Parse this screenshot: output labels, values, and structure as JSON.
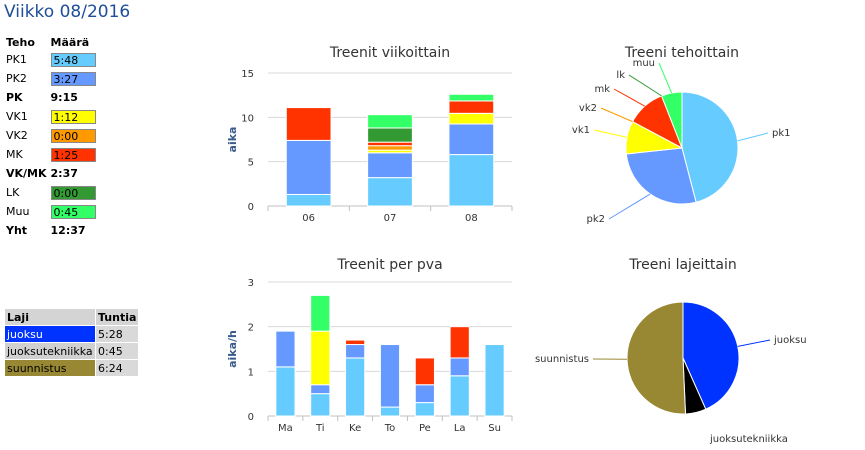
{
  "page_title": "Viikko 08/2016",
  "colors": {
    "PK1": "#66ccff",
    "PK2": "#6699ff",
    "VK1": "#ffff00",
    "VK2": "#ff9900",
    "MK": "#ff3300",
    "LK": "#339933",
    "Muu": "#33ff66",
    "juoksu": "#0033ff",
    "juoksutekniikka": "#000000",
    "suunnistus": "#998833"
  },
  "teho_table": {
    "headers": [
      "Teho",
      "Määrä"
    ],
    "rows": [
      {
        "label": "PK1",
        "value": "5:48",
        "color": "#66ccff",
        "kind": "item"
      },
      {
        "label": "PK2",
        "value": "3:27",
        "color": "#6699ff",
        "kind": "item"
      },
      {
        "label": "PK",
        "value": "9:15",
        "kind": "sum"
      },
      {
        "label": "VK1",
        "value": "1:12",
        "color": "#ffff00",
        "kind": "item"
      },
      {
        "label": "VK2",
        "value": "0:00",
        "color": "#ff9900",
        "kind": "item"
      },
      {
        "label": "MK",
        "value": "1:25",
        "color": "#ff3300",
        "kind": "item"
      },
      {
        "label": "VK/MK",
        "value": "2:37",
        "kind": "sum"
      },
      {
        "label": "LK",
        "value": "0:00",
        "color": "#339933",
        "kind": "item"
      },
      {
        "label": "Muu",
        "value": "0:45",
        "color": "#33ff66",
        "kind": "item"
      },
      {
        "label": "Yht",
        "value": "12:37",
        "kind": "sum"
      }
    ]
  },
  "laji_table": {
    "headers": [
      "Laji",
      "Tuntia"
    ],
    "rows": [
      {
        "name": "juoksu",
        "hours": "5:28",
        "color": "#0033ff"
      },
      {
        "name": "juoksutekniikka",
        "hours": "0:45",
        "color": "#d0d0d0"
      },
      {
        "name": "suunnistus",
        "hours": "6:24",
        "color": "#998833"
      }
    ]
  },
  "chart_data": [
    {
      "type": "bar",
      "stacked": true,
      "title": "Treenit viikoittain",
      "ylabel": "aika",
      "categories": [
        "06",
        "07",
        "08"
      ],
      "ylim": [
        0,
        15
      ],
      "yticks": [
        0,
        5,
        10,
        15
      ],
      "grid": true,
      "series": [
        {
          "key": "PK1",
          "color": "#66ccff",
          "values": [
            1.3,
            3.2,
            5.8
          ]
        },
        {
          "key": "PK2",
          "color": "#6699ff",
          "values": [
            6.1,
            2.8,
            3.45
          ]
        },
        {
          "key": "VK1",
          "color": "#ffff00",
          "values": [
            0,
            0.3,
            1.2
          ]
        },
        {
          "key": "VK2",
          "color": "#ff9900",
          "values": [
            0,
            0.5,
            0
          ]
        },
        {
          "key": "MK",
          "color": "#ff3300",
          "values": [
            3.7,
            0.4,
            1.4
          ]
        },
        {
          "key": "LK",
          "color": "#339933",
          "values": [
            0,
            1.6,
            0
          ]
        },
        {
          "key": "Muu",
          "color": "#33ff66",
          "values": [
            0,
            1.5,
            0.75
          ]
        }
      ]
    },
    {
      "type": "pie",
      "title": "Treeni tehoittain",
      "slices": [
        {
          "label": "pk1",
          "value": 5.8,
          "color": "#66ccff"
        },
        {
          "label": "pk2",
          "value": 3.45,
          "color": "#6699ff"
        },
        {
          "label": "vk1",
          "value": 1.2,
          "color": "#ffff00"
        },
        {
          "label": "vk2",
          "value": 0.0,
          "color": "#ff9900"
        },
        {
          "label": "mk",
          "value": 1.42,
          "color": "#ff3300"
        },
        {
          "label": "lk",
          "value": 0.0,
          "color": "#339933"
        },
        {
          "label": "muu",
          "value": 0.75,
          "color": "#33ff66"
        }
      ]
    },
    {
      "type": "bar",
      "stacked": true,
      "title": "Treenit per pva",
      "ylabel": "aika/h",
      "categories": [
        "Ma",
        "Ti",
        "Ke",
        "To",
        "Pe",
        "La",
        "Su"
      ],
      "ylim": [
        0,
        3
      ],
      "yticks": [
        0,
        1,
        2,
        3
      ],
      "grid": true,
      "series": [
        {
          "key": "PK1",
          "color": "#66ccff",
          "values": [
            1.1,
            0.5,
            1.3,
            0.2,
            0.3,
            0.9,
            1.6
          ]
        },
        {
          "key": "PK2",
          "color": "#6699ff",
          "values": [
            0.8,
            0.2,
            0.3,
            1.4,
            0.4,
            0.4,
            0
          ]
        },
        {
          "key": "VK1",
          "color": "#ffff00",
          "values": [
            0,
            1.2,
            0,
            0,
            0,
            0,
            0
          ]
        },
        {
          "key": "MK",
          "color": "#ff3300",
          "values": [
            0,
            0,
            0.1,
            0,
            0.6,
            0.7,
            0
          ]
        },
        {
          "key": "Muu",
          "color": "#33ff66",
          "values": [
            0,
            0.8,
            0,
            0,
            0,
            0,
            0
          ]
        }
      ]
    },
    {
      "type": "pie",
      "title": "Treeni lajeittain",
      "slices": [
        {
          "label": "juoksu",
          "value": 5.47,
          "color": "#0033ff"
        },
        {
          "label": "juoksutekniikka",
          "value": 0.75,
          "color": "#000000"
        },
        {
          "label": "suunnistus",
          "value": 6.4,
          "color": "#998833"
        }
      ]
    }
  ]
}
